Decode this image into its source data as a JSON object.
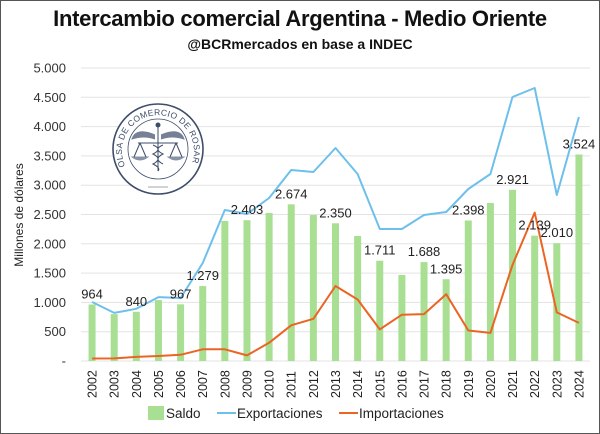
{
  "header": {
    "title": "Intercambio comercial Argentina - Medio Oriente",
    "subtitle": "@BCRmercados en base a INDEC"
  },
  "logo": {
    "text": "BOLSA DE COMERCIO DE ROSARIO",
    "icon": "caduceus-scales-seal-icon"
  },
  "colors": {
    "saldo": "#a9df92",
    "exportaciones": "#6ec0ec",
    "importaciones": "#ec6424",
    "grid": "#e3e3e3",
    "seal": "#3d4d6a"
  },
  "chart_data": {
    "type": "bar",
    "title": "Intercambio comercial Argentina - Medio Oriente",
    "subtitle": "@BCRmercados en base a INDEC",
    "xlabel": "",
    "ylabel": "Millones de dólares",
    "ylim": [
      0,
      5000
    ],
    "yticks": [
      0,
      500,
      1000,
      1500,
      2000,
      2500,
      3000,
      3500,
      4000,
      4500,
      5000
    ],
    "ytick_labels": [
      "-",
      "500",
      "1.000",
      "1.500",
      "2.000",
      "2.500",
      "3.000",
      "3.500",
      "4.000",
      "4.500",
      "5.000"
    ],
    "grid": true,
    "legend_position": "bottom",
    "categories": [
      "2002",
      "2003",
      "2004",
      "2005",
      "2006",
      "2007",
      "2008",
      "2009",
      "2010",
      "2011",
      "2012",
      "2013",
      "2014",
      "2015",
      "2016",
      "2017",
      "2018",
      "2019",
      "2020",
      "2021",
      "2022",
      "2023",
      "2024"
    ],
    "series": [
      {
        "name": "Saldo",
        "kind": "bar",
        "values": [
          964,
          800,
          840,
          1040,
          967,
          1279,
          2390,
          2403,
          2526,
          2674,
          2491,
          2350,
          2133,
          1711,
          1468,
          1688,
          1395,
          2398,
          2696,
          2921,
          2139,
          2010,
          3524
        ],
        "labels": [
          "964",
          "",
          "840",
          "",
          "967",
          "1.279",
          "",
          "2.403",
          "",
          "2.674",
          "",
          "2.350",
          "",
          "1.711",
          "",
          "1.688",
          "1.395",
          "2.398",
          "",
          "2.921",
          "2.139",
          "2.010",
          "3.524"
        ]
      },
      {
        "name": "Exportaciones",
        "kind": "line",
        "values": [
          1007,
          820,
          890,
          1090,
          1075,
          1670,
          2577,
          2509,
          2782,
          3259,
          3225,
          3635,
          3191,
          2253,
          2253,
          2491,
          2543,
          2935,
          3191,
          4505,
          4659,
          2833,
          4164
        ]
      },
      {
        "name": "Importaciones",
        "kind": "line",
        "values": [
          43,
          45,
          70,
          85,
          105,
          200,
          200,
          95,
          310,
          610,
          720,
          1280,
          1050,
          540,
          790,
          800,
          1140,
          520,
          480,
          1640,
          2530,
          830,
          650
        ]
      }
    ]
  }
}
